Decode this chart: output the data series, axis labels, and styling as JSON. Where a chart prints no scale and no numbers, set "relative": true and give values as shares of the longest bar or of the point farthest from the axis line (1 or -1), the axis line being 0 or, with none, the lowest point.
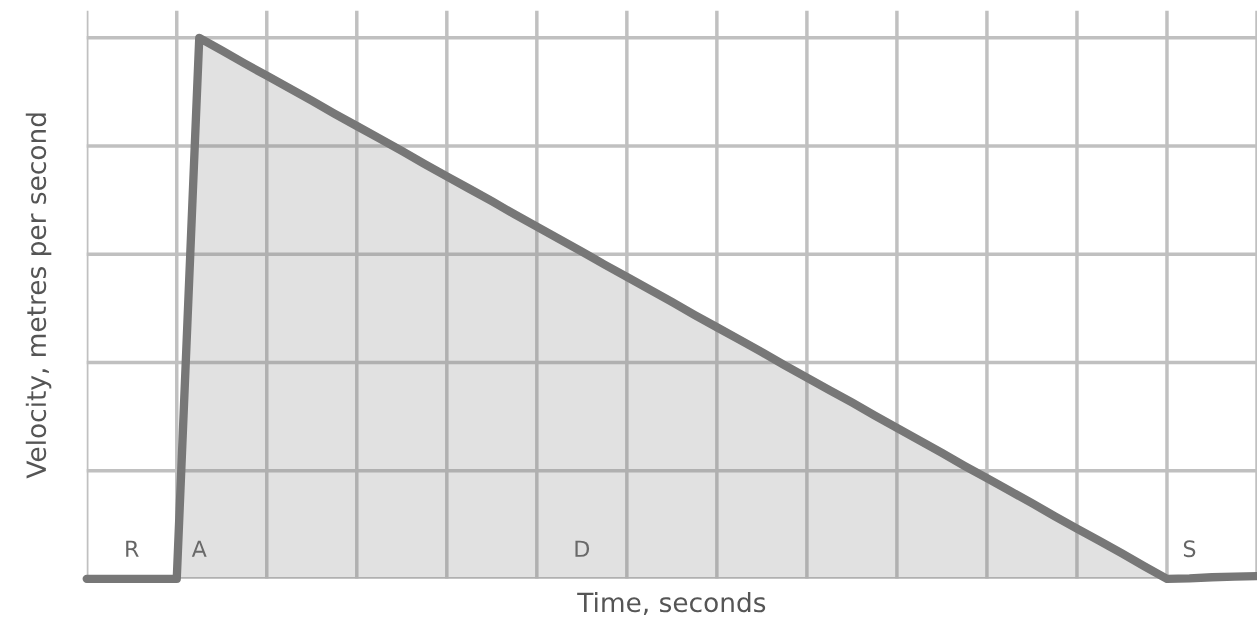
{
  "chart_data": {
    "type": "area",
    "relative": true,
    "xlabel": "Time, seconds",
    "ylabel": "Velocity, metres per second",
    "categories": [
      null,
      null,
      "R",
      null,
      null,
      "A",
      null,
      null,
      null,
      null,
      null,
      null,
      null,
      null,
      null,
      null,
      null,
      null,
      null,
      null,
      null,
      null,
      "D",
      null,
      null,
      null,
      null,
      null,
      null,
      null,
      null,
      null,
      null,
      null,
      null,
      null,
      null,
      null,
      null,
      null,
      null,
      null,
      null,
      null,
      null,
      null,
      null,
      null,
      null,
      "S",
      null,
      null,
      null
    ],
    "series": [
      {
        "color": "#777777",
        "values": [
          0,
          0,
          0,
          0,
          0,
          1,
          0.977,
          0.953,
          0.93,
          0.907,
          0.884,
          0.86,
          0.837,
          0.814,
          0.791,
          0.767,
          0.744,
          0.721,
          0.698,
          0.674,
          0.651,
          0.628,
          0.605,
          0.581,
          0.558,
          0.535,
          0.512,
          0.488,
          0.465,
          0.442,
          0.419,
          0.395,
          0.372,
          0.349,
          0.326,
          0.302,
          0.279,
          0.256,
          0.233,
          0.209,
          0.186,
          0.163,
          0.14,
          0.116,
          0.093,
          0.07,
          0.047,
          0.023,
          0,
          0.001,
          0.003,
          0.004,
          0.005
        ]
      }
    ],
    "grid": true
  }
}
